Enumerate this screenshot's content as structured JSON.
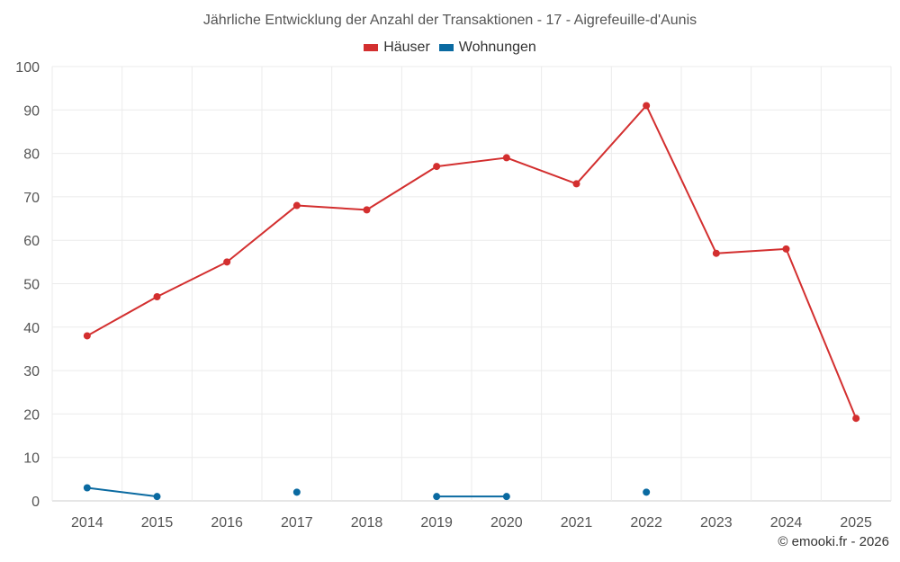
{
  "chart_data": {
    "type": "line",
    "title": "Jährliche Entwicklung der Anzahl der Transaktionen - 17 - Aigrefeuille-d'Aunis",
    "xlabel": "",
    "ylabel": "",
    "categories": [
      "2014",
      "2015",
      "2016",
      "2017",
      "2018",
      "2019",
      "2020",
      "2021",
      "2022",
      "2023",
      "2024",
      "2025"
    ],
    "ylim": [
      0,
      100
    ],
    "yticks": [
      0,
      10,
      20,
      30,
      40,
      50,
      60,
      70,
      80,
      90,
      100
    ],
    "grid": true,
    "legend_position": "top-center",
    "series": [
      {
        "name": "Häuser",
        "color": "#d32f2f",
        "values": [
          38,
          47,
          55,
          68,
          67,
          77,
          79,
          73,
          91,
          57,
          58,
          19
        ]
      },
      {
        "name": "Wohnungen",
        "color": "#0a6aa1",
        "values": [
          3,
          1,
          null,
          2,
          null,
          1,
          1,
          null,
          2,
          null,
          null,
          null
        ]
      }
    ]
  },
  "credit": "© emooki.fr - 2026"
}
